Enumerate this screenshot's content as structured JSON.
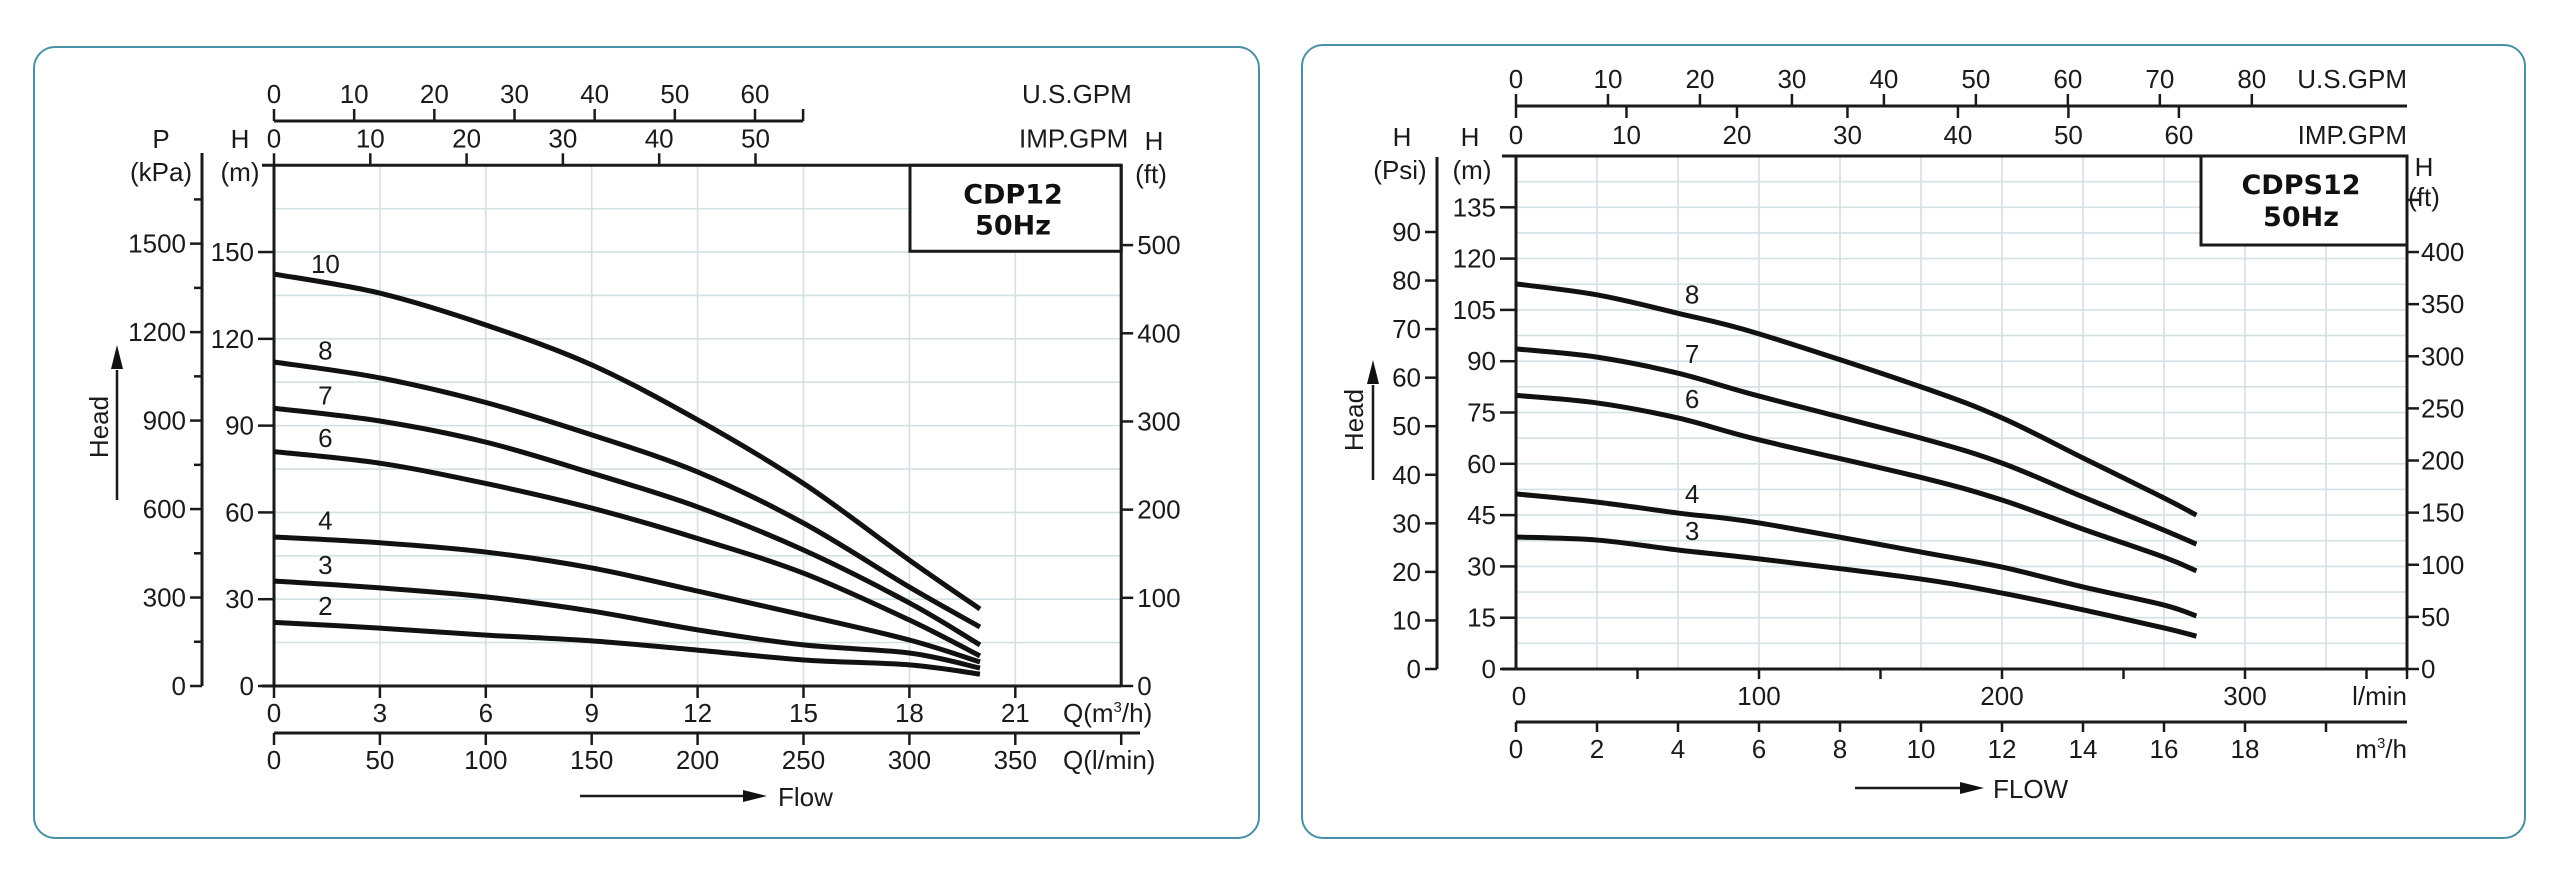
{
  "chart_data": [
    {
      "type": "line",
      "title": "CDP12 50Hz",
      "model": "CDP12",
      "frequency": "50Hz",
      "xlabel": "Q(m³/h)",
      "x_unit_m3h": "Q(m",
      "x_unit_sup": "3",
      "x_unit_tail": "/h)",
      "x2label": "Q(l/min)",
      "x_top_us": "U.S.GPM",
      "x_top_imp": "IMP.GPM",
      "ylabel_left_p": "P",
      "ylabel_left_p_unit": "(kPa)",
      "ylabel_h": "H",
      "ylabel_h_unit": "(m)",
      "ylabel_right": "H",
      "ylabel_right_unit": "(ft)",
      "head_label": "Head",
      "flow_label": "Flow",
      "xlim": [
        0,
        24
      ],
      "ylim": [
        0,
        180
      ],
      "grid": true,
      "x_ticks": [
        0,
        3,
        6,
        9,
        12,
        15,
        18,
        21
      ],
      "x2_ticks": [
        0,
        50,
        100,
        150,
        200,
        250,
        300,
        350
      ],
      "us_gpm_ticks": [
        0,
        10,
        20,
        30,
        40,
        50,
        60
      ],
      "imp_gpm_ticks": [
        0,
        10,
        20,
        30,
        40,
        50
      ],
      "y_ticks_m": [
        0,
        30,
        60,
        90,
        120,
        150
      ],
      "y_ticks_kpa": [
        0,
        300,
        600,
        900,
        1200,
        1500
      ],
      "y_ticks_ft": [
        0,
        100,
        200,
        300,
        400,
        500
      ],
      "x": [
        0,
        3,
        6,
        9,
        12,
        15,
        18,
        20
      ],
      "series": [
        {
          "name": "10",
          "values": [
            142.4,
            135.8,
            124.8,
            111,
            92,
            70,
            43.5,
            26.6
          ]
        },
        {
          "name": "8",
          "values": [
            112,
            106.5,
            98,
            86.8,
            74,
            56.3,
            34.2,
            20.4
          ]
        },
        {
          "name": "7",
          "values": [
            96,
            91.6,
            84.3,
            73.6,
            61.9,
            47,
            28.7,
            14.2
          ]
        },
        {
          "name": "6",
          "values": [
            81,
            77,
            70,
            61.5,
            51,
            39,
            22.8,
            10.4
          ]
        },
        {
          "name": "4",
          "values": [
            51.5,
            49.5,
            46.3,
            40.8,
            32.8,
            24.5,
            15.9,
            8.3
          ]
        },
        {
          "name": "3",
          "values": [
            36.3,
            33.9,
            30.8,
            25.9,
            19.4,
            14.2,
            11.4,
            6.2
          ]
        },
        {
          "name": "2",
          "values": [
            22,
            20,
            17.6,
            15.6,
            12.4,
            9,
            7.3,
            4.1
          ]
        }
      ]
    },
    {
      "type": "line",
      "title": "CDPS12 50Hz",
      "model": "CDPS12",
      "frequency": "50Hz",
      "xlabel": "l/min",
      "x2label_main": "m",
      "x2label_sup": "3",
      "x2label_tail": "/h",
      "x_top_us": "U.S.GPM",
      "x_top_imp": "IMP.GPM",
      "ylabel_psi": "H",
      "ylabel_psi_unit": "(Psi)",
      "ylabel_h": "H",
      "ylabel_h_unit": "(m)",
      "ylabel_right": "H",
      "ylabel_right_unit": "(ft)",
      "head_label": "Head",
      "flow_label": "FLOW",
      "xlim_m3h": [
        0,
        22
      ],
      "ylim": [
        0,
        150
      ],
      "grid": true,
      "x_ticks_lmin": [
        100,
        200,
        300
      ],
      "x_label_zero": "0",
      "x2_ticks": [
        0,
        2,
        4,
        6,
        8,
        10,
        12,
        14,
        16,
        18
      ],
      "us_gpm_ticks": [
        0,
        10,
        20,
        30,
        40,
        50,
        60,
        70,
        80
      ],
      "imp_gpm_ticks": [
        0,
        10,
        20,
        30,
        40,
        50,
        60
      ],
      "y_ticks_m": [
        0,
        15,
        30,
        45,
        60,
        75,
        90,
        105,
        120,
        135
      ],
      "y_ticks_psi": [
        0,
        10,
        20,
        30,
        40,
        50,
        60,
        70,
        80,
        90
      ],
      "y_ticks_ft": [
        0,
        50,
        100,
        150,
        200,
        250,
        300,
        350,
        400
      ],
      "x": [
        0,
        2,
        4,
        6,
        10,
        12,
        14,
        16,
        16.8
      ],
      "series": [
        {
          "name": "8",
          "values": [
            112.6,
            109.4,
            104,
            98,
            82.5,
            73.4,
            61.7,
            50,
            45
          ]
        },
        {
          "name": "7",
          "values": [
            93.6,
            91.2,
            86.5,
            79.8,
            67.5,
            60.2,
            50.3,
            40.6,
            36.5
          ]
        },
        {
          "name": "6",
          "values": [
            80,
            77.8,
            73.4,
            67,
            56,
            49.4,
            40.9,
            32.7,
            28.7
          ]
        },
        {
          "name": "4",
          "values": [
            51.2,
            48.8,
            45.6,
            42.7,
            34.2,
            29.8,
            24,
            18.7,
            15.5
          ]
        },
        {
          "name": "3",
          "values": [
            38.6,
            37.7,
            34.8,
            32.2,
            26.3,
            22.2,
            17.3,
            12,
            9.6
          ]
        }
      ]
    }
  ]
}
